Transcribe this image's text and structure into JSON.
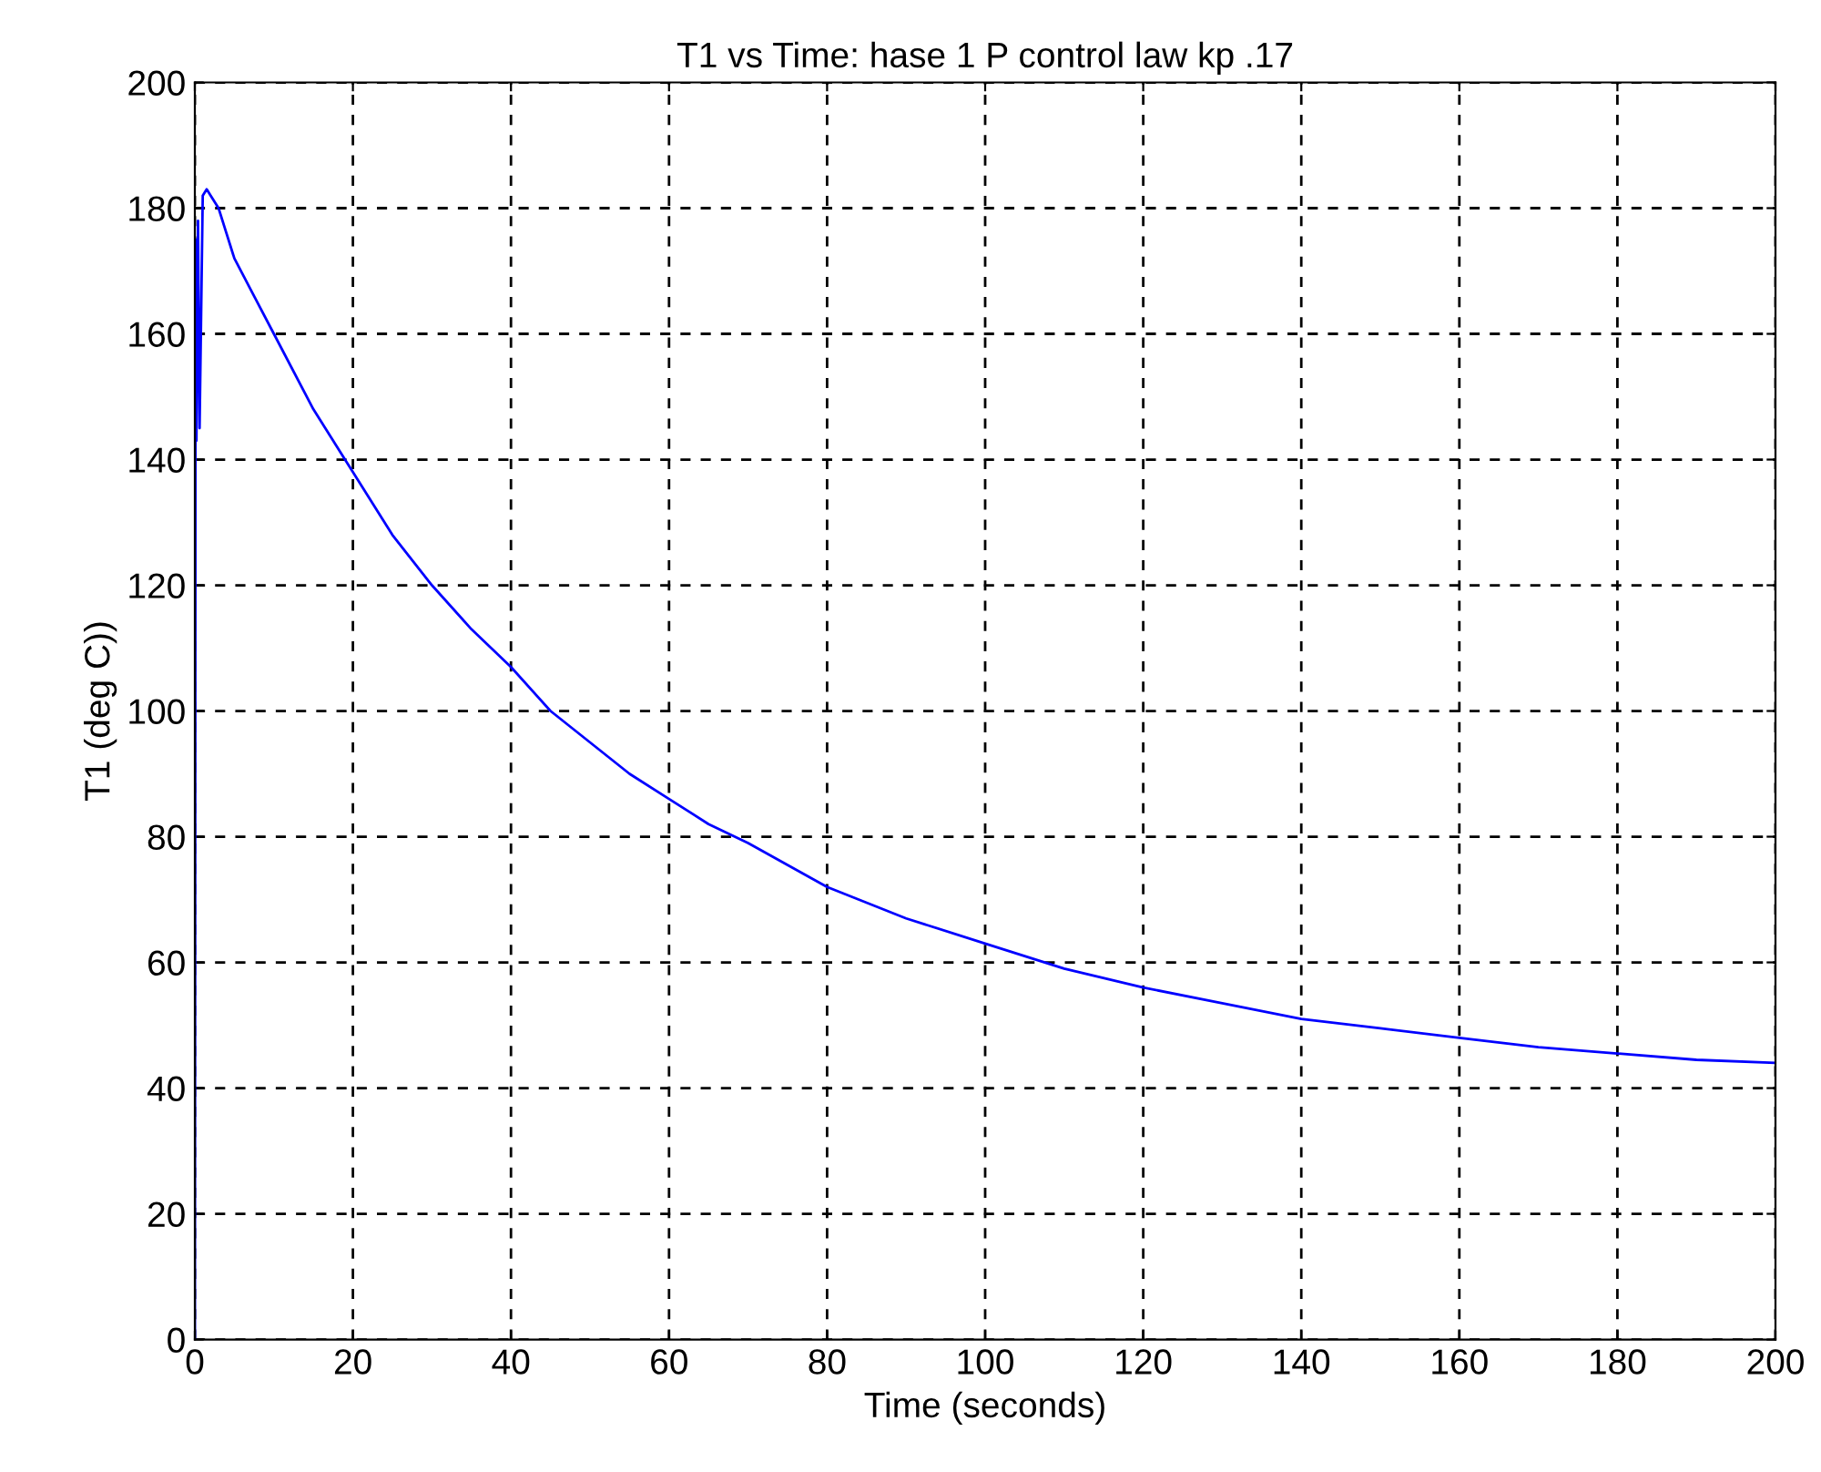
{
  "chart_data": {
    "type": "line",
    "title": "T1 vs Time: hase 1 P control law kp .17",
    "xlabel": "Time (seconds)",
    "ylabel": "T1 (deg C))",
    "xlim": [
      0,
      200
    ],
    "ylim": [
      0,
      200
    ],
    "xticks": [
      0,
      20,
      40,
      60,
      80,
      100,
      120,
      140,
      160,
      180,
      200
    ],
    "yticks": [
      0,
      20,
      40,
      60,
      80,
      100,
      120,
      140,
      160,
      180,
      200
    ],
    "grid": true,
    "line_style": "solid",
    "marker": "none",
    "series": [
      {
        "color": "#0000ff",
        "x": [
          0,
          0.1,
          0.2,
          0.4,
          0.6,
          1,
          1.5,
          2,
          3,
          5,
          7.5,
          10,
          15,
          20,
          25,
          30,
          35,
          40,
          45,
          50,
          55,
          60,
          65,
          70,
          80,
          90,
          100,
          110,
          120,
          130,
          140,
          150,
          160,
          170,
          180,
          190,
          200
        ],
        "values": [
          0,
          175,
          143,
          178,
          145,
          182,
          183,
          182,
          180,
          172,
          166,
          160,
          148,
          138,
          128,
          120,
          113,
          107,
          100,
          95,
          90,
          86,
          82,
          79,
          72,
          67,
          63,
          59,
          56,
          53.5,
          51,
          49.5,
          48,
          46.5,
          45.5,
          44.5,
          44
        ]
      }
    ]
  }
}
